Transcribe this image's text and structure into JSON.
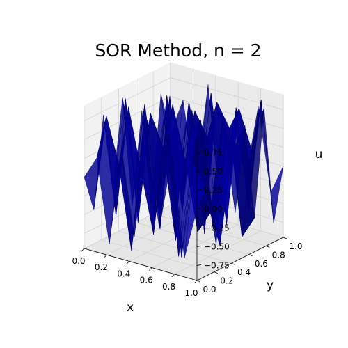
{
  "chart_data": {
    "type": "surface",
    "title": "SOR Method, n = 2",
    "xlabel": "x",
    "ylabel": "y",
    "zlabel": "u",
    "xlim": [
      0.0,
      1.0
    ],
    "ylim": [
      0.0,
      1.0
    ],
    "zlim": [
      -0.95,
      0.95
    ],
    "x_ticks": [
      "0.0",
      "0.2",
      "0.4",
      "0.6",
      "0.8",
      "1.0"
    ],
    "y_ticks": [
      "0.0",
      "0.2",
      "0.4",
      "0.6",
      "0.8",
      "1.0"
    ],
    "z_ticks": [
      "0.75",
      "0.50",
      "0.25",
      "0.00",
      "−0.25",
      "−0.50",
      "−0.75"
    ],
    "grid": true,
    "surface_color": "#0000ff",
    "grid_size": 10,
    "z_values": [
      [
        0.0,
        0.3,
        -0.8,
        0.5,
        -0.6,
        0.7,
        -0.4,
        0.6,
        -0.7,
        0.0
      ],
      [
        -0.5,
        0.8,
        0.2,
        -0.9,
        0.9,
        -0.3,
        0.8,
        -0.8,
        0.5,
        0.2
      ],
      [
        0.7,
        -0.6,
        0.9,
        0.1,
        -0.7,
        0.8,
        -0.9,
        0.3,
        0.8,
        -0.6
      ],
      [
        -0.3,
        0.9,
        -0.7,
        0.8,
        0.4,
        -0.8,
        0.6,
        0.9,
        -0.5,
        0.7
      ],
      [
        0.8,
        -0.2,
        0.6,
        -0.8,
        0.9,
        0.2,
        -0.7,
        -0.4,
        0.9,
        -0.3
      ],
      [
        -0.7,
        0.7,
        -0.5,
        0.9,
        -0.6,
        0.8,
        0.5,
        -0.9,
        0.4,
        0.8
      ],
      [
        0.5,
        -0.9,
        0.8,
        -0.3,
        0.7,
        -0.9,
        0.9,
        0.6,
        -0.8,
        -0.5
      ],
      [
        -0.8,
        0.4,
        -0.9,
        0.7,
        -0.2,
        0.6,
        -0.8,
        0.8,
        0.3,
        0.9
      ],
      [
        0.6,
        -0.7,
        0.3,
        -0.6,
        0.8,
        -0.5,
        0.7,
        -0.6,
        0.9,
        -0.7
      ],
      [
        0.0,
        0.5,
        -0.6,
        0.8,
        -0.9,
        0.4,
        -0.3,
        0.7,
        -0.4,
        0.0
      ]
    ]
  }
}
